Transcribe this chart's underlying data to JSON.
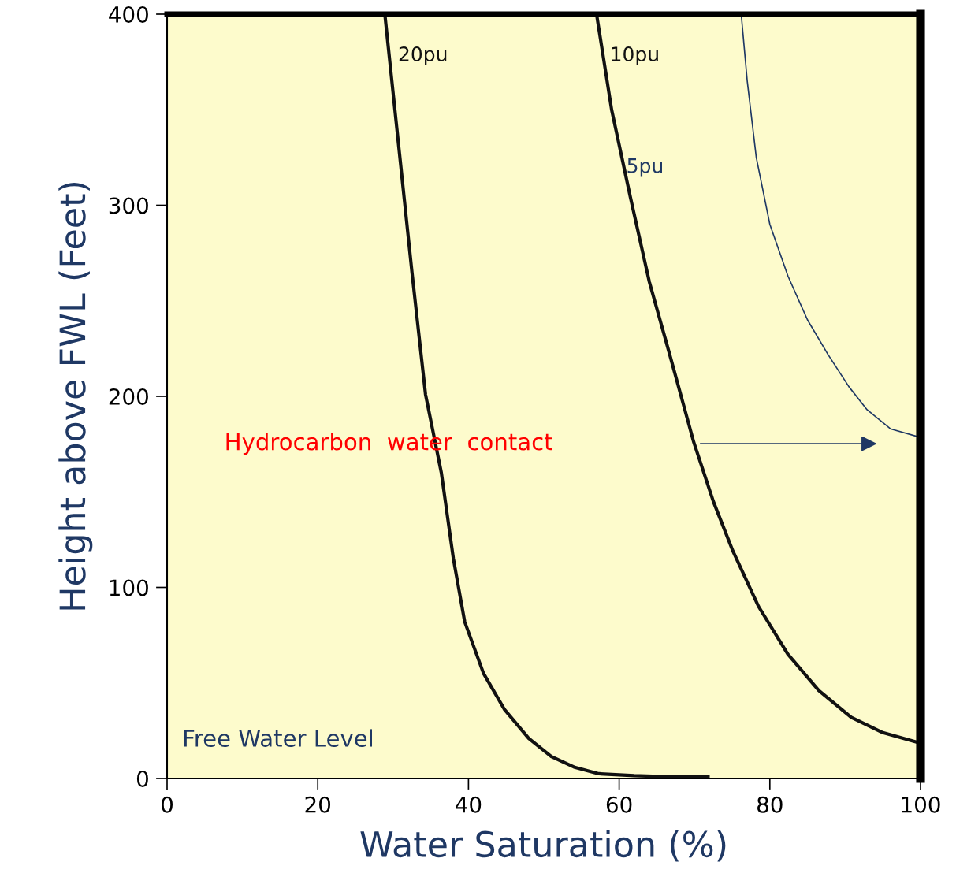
{
  "chart_data": {
    "type": "line",
    "xlabel": "Water Saturation (%)",
    "ylabel": "Height above FWL (Feet)",
    "xlim": [
      0,
      100
    ],
    "ylim": [
      0,
      400
    ],
    "xticks": [
      0,
      20,
      40,
      60,
      80,
      100
    ],
    "yticks": [
      0,
      100,
      200,
      300,
      400
    ],
    "grid": false,
    "legend": false,
    "marker": "none",
    "line_style": "solid",
    "series": [
      {
        "name": "20pu",
        "color": "#111111",
        "x": [
          28.9,
          30.5,
          32.5,
          34.3,
          36.4,
          38,
          39.5,
          42,
          44.8,
          48,
          51,
          54,
          57.3,
          62,
          66,
          71.8
        ],
        "values": [
          400,
          340,
          265,
          201,
          160,
          115,
          82,
          55,
          36,
          21,
          11.5,
          6,
          2.5,
          1.5,
          1,
          1
        ]
      },
      {
        "name": "10pu",
        "color": "#111111",
        "x": [
          57,
          59,
          61.5,
          64,
          66.7,
          69.9,
          72.5,
          75.1,
          78.5,
          82.4,
          86.5,
          90.8,
          95,
          100
        ],
        "values": [
          400,
          350,
          304,
          260,
          222,
          176,
          145,
          119,
          90,
          65,
          46,
          32,
          24,
          18.5
        ]
      },
      {
        "name": "5pu",
        "color": "#1f3864",
        "x": [
          76.2,
          77,
          78.2,
          80,
          82.4,
          85,
          87.7,
          90.5,
          92.9,
          96,
          100
        ],
        "values": [
          400,
          365,
          325,
          290,
          263,
          240,
          222,
          205,
          193,
          183,
          178.5
        ]
      }
    ],
    "annotations": [
      "Hydrocarbon  water  contact",
      "Free Water Level"
    ]
  }
}
